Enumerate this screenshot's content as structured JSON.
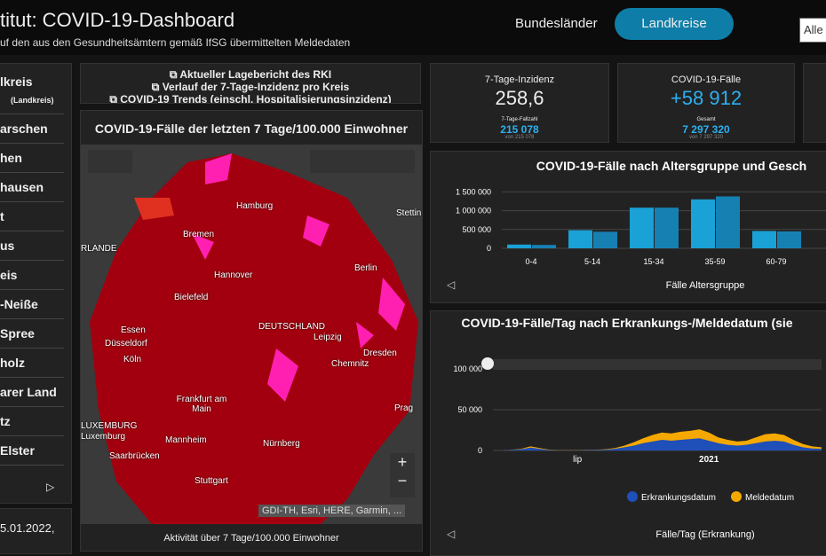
{
  "header": {
    "title": "titut: COVID-19-Dashboard",
    "subtitle": "uf den aus den Gesundheitsämtern gemäß IfSG übermittelten Meldedaten",
    "tabs": [
      "Bundesländer",
      "Landkreise",
      "Alle I"
    ]
  },
  "sidebar": {
    "title": "lkreis",
    "badge": "(Landkreis)",
    "items": [
      "arschen",
      "hen",
      "hausen",
      "t",
      "us",
      "eis",
      "-Neiße",
      "Spree",
      "holz",
      "arer Land",
      "tz",
      "Elster"
    ],
    "date": "5.01.2022,"
  },
  "links": [
    "Aktueller Lagebericht des RKI",
    "Verlauf der 7-Tage-Inzidenz pro Kreis",
    "COVID-19 Trends (einschl. Hospitalisierungsinzidenz)"
  ],
  "map": {
    "title": "COVID-19-Fälle der letzten 7 Tage/100.000 Einwohner",
    "footer": "Aktivität über 7 Tage/100.000 Einwohner",
    "attribution": "GDI-TH, Esri, HERE, Garmin, ...",
    "labels": [
      "Hamburg",
      "Bremen",
      "Hannover",
      "Bielefeld",
      "Berlin",
      "DEUTSCHLAND",
      "Leipzig",
      "Dresden",
      "Chemnitz",
      "Essen",
      "Düsseldorf",
      "Köln",
      "Frankfurt am Main",
      "Mannheim",
      "Nürnberg",
      "Stuttgart",
      "Saarbrücken",
      "LUXEMBURG",
      "Luxemburg",
      "Prag",
      "Stettin",
      "RLANDE"
    ]
  },
  "kpis": [
    {
      "title": "7-Tage-Inzidenz",
      "value": "258,6",
      "sub_label": "7-Tage-Fallzahl",
      "sub_value": "215 078",
      "sub_small": "von 215 078"
    },
    {
      "title": "COVID-19-Fälle",
      "value": "+58 912",
      "sub_label": "Gesamt",
      "sub_value": "7 297 320",
      "sub_small": "von 7 297 320"
    }
  ],
  "chart_data": [
    {
      "type": "bar",
      "title": "COVID-19-Fälle nach Altersgruppe und Gesch",
      "x_label": "Fälle Altersgruppe",
      "categories": [
        "0-4",
        "5-14",
        "15-34",
        "35-59",
        "60-79"
      ],
      "series": [
        {
          "color": "#1aa1d6",
          "values": [
            100000,
            480000,
            1080000,
            1300000,
            460000
          ]
        },
        {
          "color": "#1780b3",
          "values": [
            90000,
            440000,
            1080000,
            1380000,
            450000
          ]
        }
      ],
      "ylim": [
        0,
        1650000
      ],
      "yticks": [
        0,
        {
          "value": 500000,
          "label": "500 000"
        },
        {
          "value": 1000000,
          "label": "1 000 000"
        },
        {
          "value": 1500000,
          "label": "1 500 000"
        }
      ],
      "grid": true
    },
    {
      "type": "area",
      "title": "COVID-19-Fälle/Tag nach Erkrankungs-/Meldedatum (sie",
      "x_label": "Fälle/Tag (Erkrankung)",
      "categories": [
        null,
        null,
        null,
        null,
        null,
        null,
        null,
        null,
        null,
        "lip",
        null,
        null,
        null,
        null,
        null,
        null,
        null,
        null,
        null,
        null,
        null,
        null,
        null,
        "2021",
        null,
        null,
        null,
        null,
        null,
        null,
        null,
        null,
        null,
        null,
        null,
        null
      ],
      "series": [
        {
          "name": "Meldedatum",
          "color": "#f5a800",
          "values": [
            0,
            0,
            1000,
            2000,
            5000,
            3000,
            1000,
            500,
            500,
            500,
            800,
            1000,
            1500,
            3000,
            6000,
            10000,
            15000,
            19000,
            22000,
            21000,
            23000,
            24000,
            26000,
            22000,
            16000,
            13000,
            11000,
            12000,
            16000,
            20000,
            21000,
            19000,
            13000,
            8000,
            5000,
            4000
          ]
        },
        {
          "name": "Erkrankungsdatum",
          "color": "#1f4fb8",
          "values": [
            0,
            0,
            800,
            1500,
            3500,
            2000,
            600,
            300,
            300,
            300,
            500,
            700,
            1000,
            2000,
            4000,
            6000,
            9000,
            11000,
            13000,
            12000,
            13000,
            14000,
            15000,
            12000,
            9000,
            7000,
            6000,
            7000,
            9000,
            11000,
            12000,
            11000,
            7000,
            4000,
            2500,
            2000
          ]
        }
      ],
      "ylim": [
        0,
        112000
      ],
      "yticks": [
        0,
        {
          "value": 50000,
          "label": "50 000"
        },
        {
          "value": 100000,
          "label": "100 000"
        }
      ],
      "grid": true
    }
  ]
}
